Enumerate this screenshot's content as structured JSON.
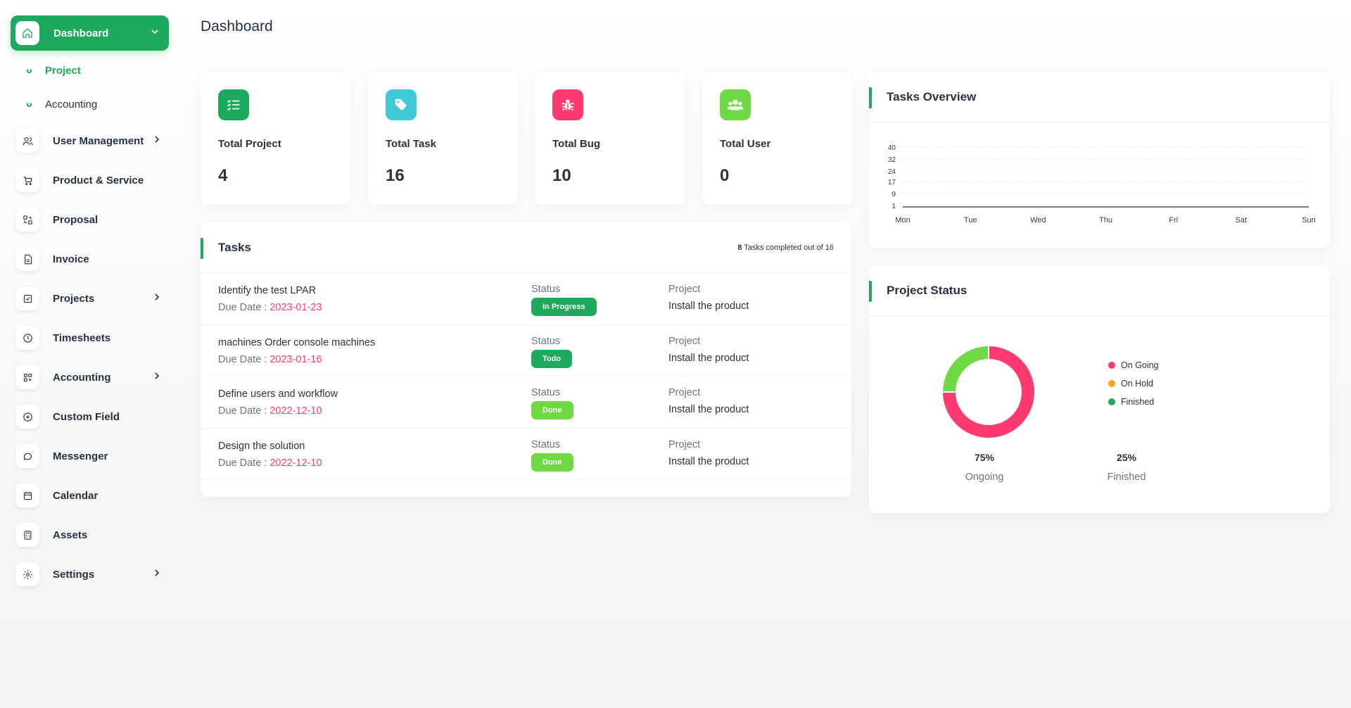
{
  "sidebar": {
    "dashboard_label": "Dashboard",
    "sub_items": [
      {
        "label": "Project"
      },
      {
        "label": "Accounting"
      }
    ],
    "items": [
      {
        "label": "User Management",
        "icon": "users-icon"
      },
      {
        "label": "Product & Service",
        "icon": "cart-icon"
      },
      {
        "label": "Proposal",
        "icon": "proposal-icon"
      },
      {
        "label": "Invoice",
        "icon": "file-icon"
      },
      {
        "label": "Projects",
        "icon": "check-square-icon"
      },
      {
        "label": "Timesheets",
        "icon": "clock-icon"
      },
      {
        "label": "Accounting",
        "icon": "grid-icon"
      },
      {
        "label": "Custom Field",
        "icon": "plus-circle-icon"
      },
      {
        "label": "Messenger",
        "icon": "message-icon"
      },
      {
        "label": "Calendar",
        "icon": "calendar-icon"
      },
      {
        "label": "Assets",
        "icon": "calculator-icon"
      },
      {
        "label": "Settings",
        "icon": "gear-icon"
      }
    ]
  },
  "header": {
    "title": "Dashboard"
  },
  "stats": [
    {
      "label": "Total Project",
      "value": "4",
      "icon": "list-check-icon",
      "color": "#1ea95f"
    },
    {
      "label": "Total Task",
      "value": "16",
      "icon": "tag-icon",
      "color": "#3ec9d6"
    },
    {
      "label": "Total Bug",
      "value": "10",
      "icon": "bug-icon",
      "color": "#ff3a6e"
    },
    {
      "label": "Total User",
      "value": "0",
      "icon": "users-icon",
      "color": "#6fd943"
    }
  ],
  "tasks": {
    "title": "Tasks",
    "completed_count": "8",
    "completed_text": "Tasks completed out of 16",
    "status_label": "Status",
    "project_label": "Project",
    "due_label": "Due Date : ",
    "rows": [
      {
        "name": "Identify the test LPAR",
        "due": "2023-01-23",
        "status": "In Progress",
        "status_color": "#1ea95f",
        "project": "Install the product"
      },
      {
        "name": "machines Order console machines",
        "due": "2023-01-16",
        "status": "Todo",
        "status_color": "#1ea95f",
        "project": "Install the product"
      },
      {
        "name": "Define users and workflow",
        "due": "2022-12-10",
        "status": "Done",
        "status_color": "#6fd943",
        "project": "Install the product"
      },
      {
        "name": "Design the solution",
        "due": "2022-12-10",
        "status": "Done",
        "status_color": "#6fd943",
        "project": "Install the product"
      }
    ]
  },
  "overview": {
    "title": "Tasks Overview"
  },
  "project_status": {
    "title": "Project Status",
    "legend": [
      {
        "label": "On Going",
        "color": "#ff3a6e"
      },
      {
        "label": "On Hold",
        "color": "#ffa21d"
      },
      {
        "label": "Finished",
        "color": "#1ea95f"
      }
    ],
    "summary": [
      {
        "value": "75%",
        "label": "Ongoing"
      },
      {
        "value": "25%",
        "label": "Finished"
      }
    ]
  },
  "chart_data": [
    {
      "type": "line",
      "title": "Tasks Overview",
      "x": [
        "Mon",
        "Tue",
        "Wed",
        "Thu",
        "Fri",
        "Sat",
        "Sun"
      ],
      "y_ticks": [
        1,
        9,
        17,
        24,
        32,
        40
      ],
      "ylim": [
        0,
        40
      ],
      "series": [
        {
          "values": [
            0,
            0,
            0,
            0,
            0,
            0,
            0
          ]
        }
      ],
      "grid": true
    },
    {
      "type": "pie",
      "title": "Project Status",
      "categories": [
        "On Going",
        "On Hold",
        "Finished"
      ],
      "values": [
        75,
        0,
        25
      ],
      "colors": [
        "#ff3a6e",
        "#ffa21d",
        "#6fd943"
      ]
    }
  ]
}
